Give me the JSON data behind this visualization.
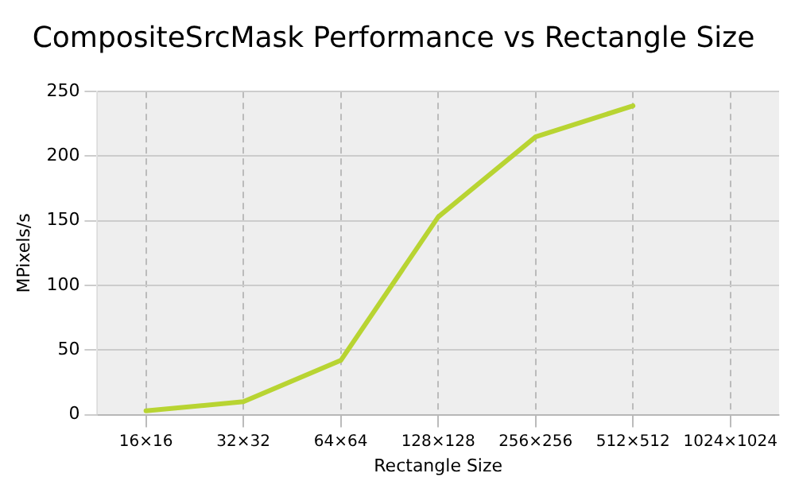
{
  "chart_data": {
    "type": "line",
    "title": "CompositeSrcMask Performance vs Rectangle Size",
    "xlabel": "Rectangle Size",
    "ylabel": "MPixels/s",
    "categories": [
      "16×16",
      "32×32",
      "64×64",
      "128×128",
      "256×256",
      "512×512",
      "1024×1024"
    ],
    "series": [
      {
        "color": "#b8d432",
        "values": [
          3,
          10,
          42,
          153,
          215,
          239,
          null
        ]
      }
    ],
    "ylim": [
      0,
      250
    ],
    "yticks": [
      0,
      50,
      100,
      150,
      200,
      250
    ],
    "grid": true,
    "legend": false,
    "marker": "none",
    "line_style": "solid"
  }
}
